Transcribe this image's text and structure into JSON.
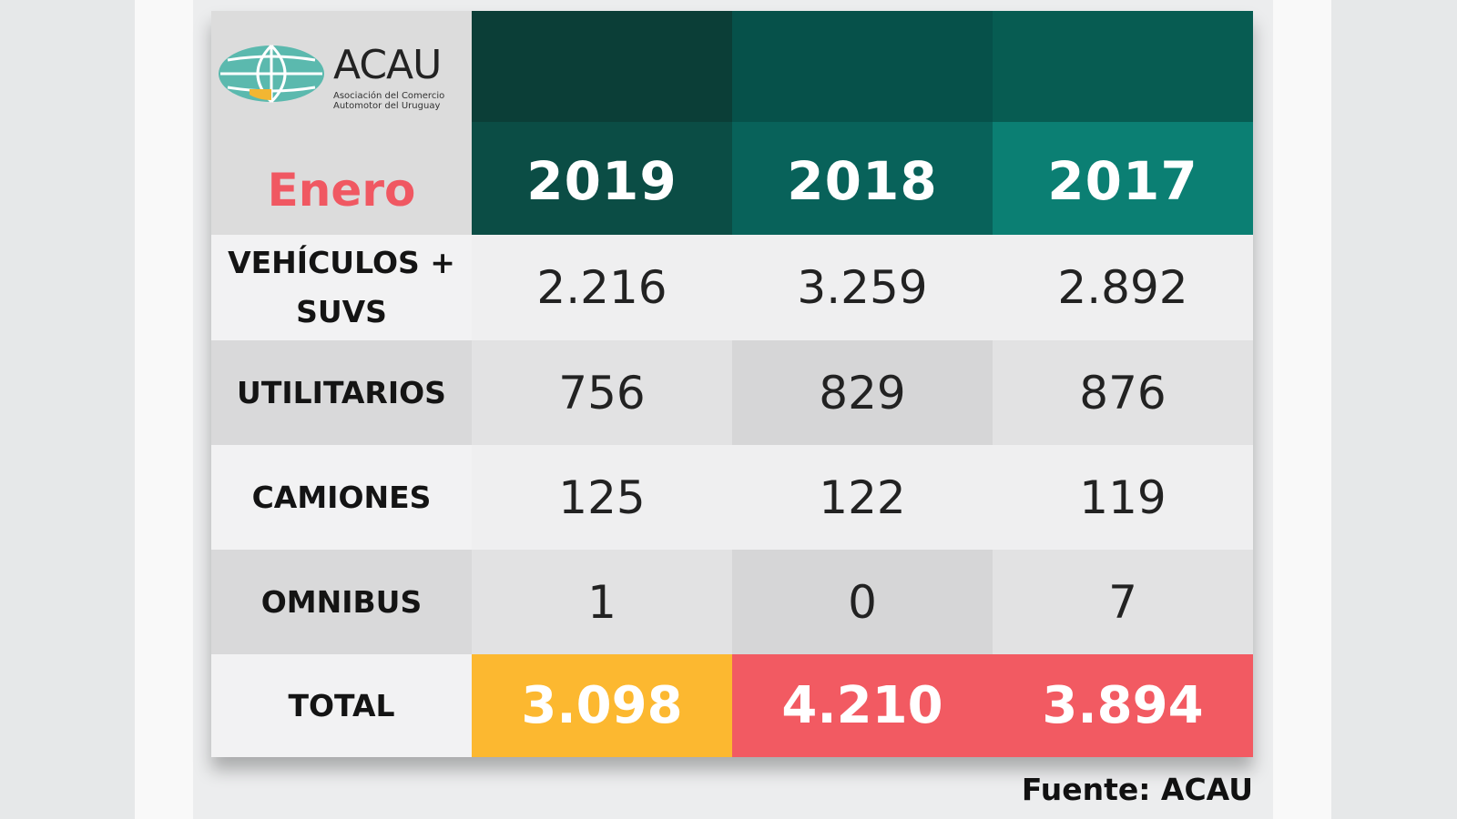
{
  "logo": {
    "name": "ACAU",
    "subtitle_line1": "Asociación del Comercio",
    "subtitle_line2": "Automotor del Uruguay"
  },
  "header": {
    "month": "Enero",
    "years": [
      "2019",
      "2018",
      "2017"
    ]
  },
  "rows": [
    {
      "label_line1": "VEHÍCULOS +",
      "label_line2": "SUVS",
      "values": [
        "2.216",
        "3.259",
        "2.892"
      ]
    },
    {
      "label": "UTILITARIOS",
      "values": [
        "756",
        "829",
        "876"
      ]
    },
    {
      "label": "CAMIONES",
      "values": [
        "125",
        "122",
        "119"
      ]
    },
    {
      "label": "OMNIBUS",
      "values": [
        "1",
        "0",
        "7"
      ]
    },
    {
      "label": "TOTAL",
      "values": [
        "3.098",
        "4.210",
        "3.894"
      ]
    }
  ],
  "source": "Fuente: ACAU",
  "colors": {
    "month": "#f05862",
    "total_2019": "#fcb830",
    "total_2018": "#f25a62",
    "total_2017": "#f25a62",
    "header_dark_teal": "#0b4d45",
    "header_teal": "#0b7f73"
  },
  "chart_data": {
    "type": "table",
    "title": "Enero",
    "columns": [
      "2019",
      "2018",
      "2017"
    ],
    "rows": [
      {
        "category": "VEHÍCULOS + SUVS",
        "values": [
          2216,
          3259,
          2892
        ]
      },
      {
        "category": "UTILITARIOS",
        "values": [
          756,
          829,
          876
        ]
      },
      {
        "category": "CAMIONES",
        "values": [
          125,
          122,
          119
        ]
      },
      {
        "category": "OMNIBUS",
        "values": [
          1,
          0,
          7
        ]
      },
      {
        "category": "TOTAL",
        "values": [
          3098,
          4210,
          3894
        ]
      }
    ],
    "source": "Fuente: ACAU"
  }
}
